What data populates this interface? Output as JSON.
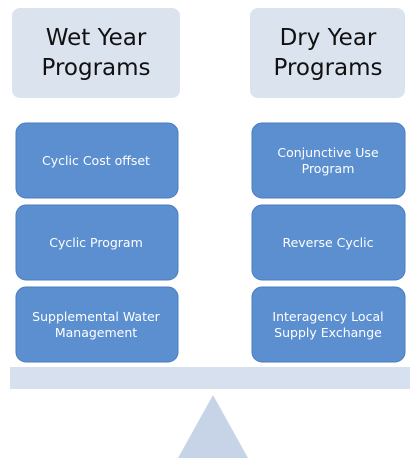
{
  "columns": [
    {
      "title": [
        "Wet Year",
        "Programs"
      ],
      "items": [
        [
          "Cyclic Cost offset"
        ],
        [
          "Cyclic Program"
        ],
        [
          "Supplemental Water",
          "Management"
        ]
      ]
    },
    {
      "title": [
        "Dry Year",
        "Programs"
      ],
      "items": [
        [
          "Conjunctive Use",
          "Program"
        ],
        [
          "Reverse Cyclic"
        ],
        [
          "Interagency Local",
          "Supply Exchange"
        ]
      ]
    }
  ]
}
